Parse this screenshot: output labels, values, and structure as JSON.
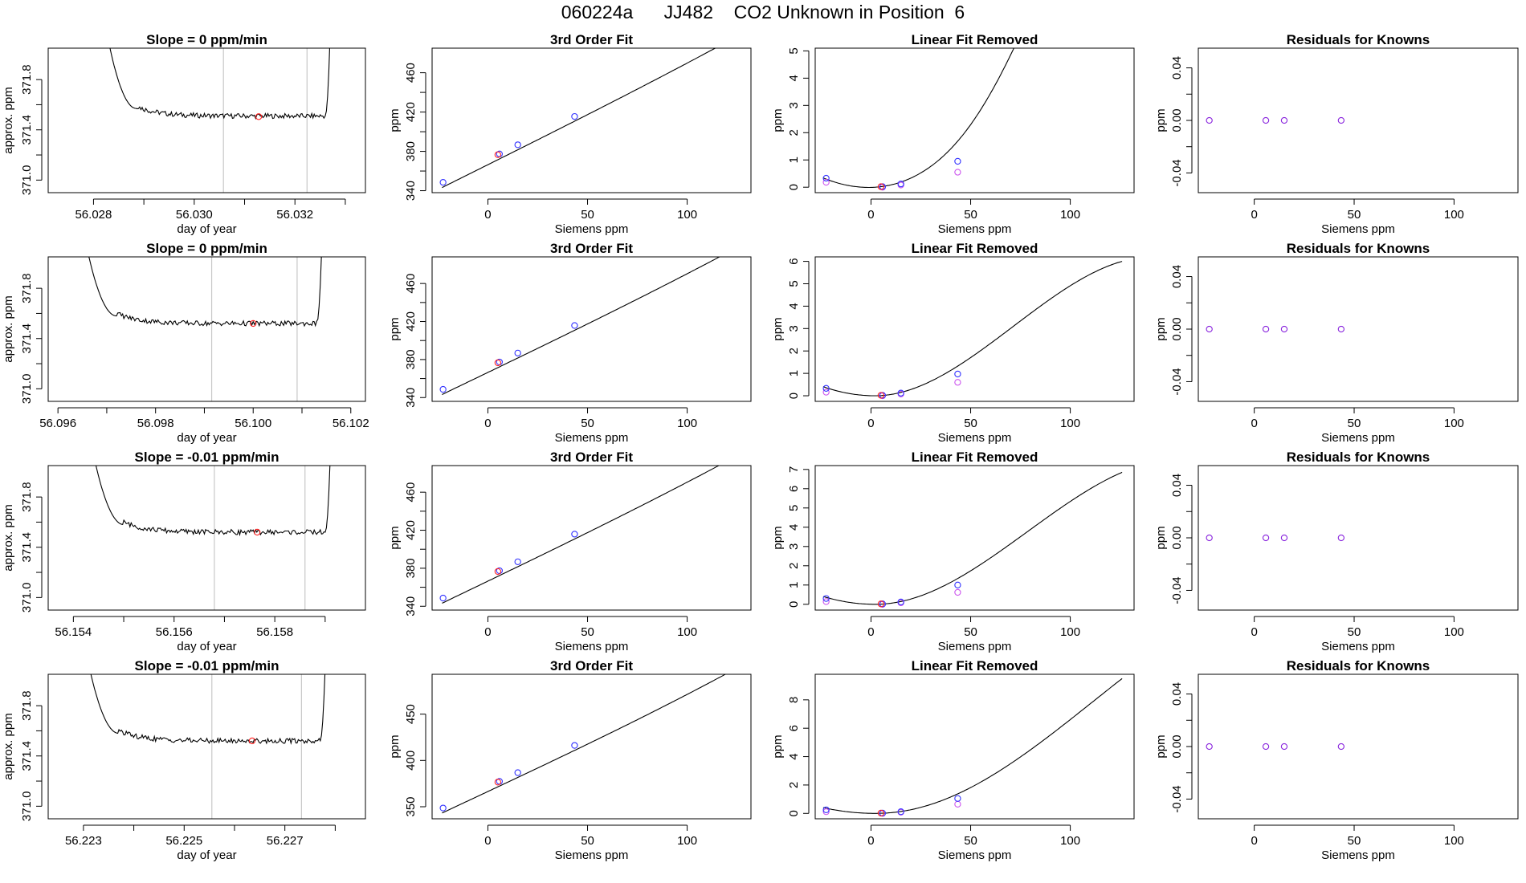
{
  "figure_title": "060224a      JJ482    CO2 Unknown in Position  6",
  "colors": {
    "line": "#000000",
    "known": "#3333ff",
    "unknown": "#ff2222",
    "residual": "#8822dd",
    "removed": "#cc55ee",
    "vline": "#c8c8c8"
  },
  "chart_data": [
    {
      "id": "r1-time",
      "type": "line",
      "title": "Slope =  0  ppm/min",
      "xlabel": "day of year",
      "ylabel": "approx. ppm",
      "xlim": [
        56.0271,
        56.0334
      ],
      "ylim": [
        370.9,
        372.05
      ],
      "xticks": [
        56.028,
        56.029,
        56.03,
        56.031,
        56.032,
        56.033
      ],
      "xtick_labels": [
        "56.028",
        "",
        "56.030",
        "",
        "56.032",
        ""
      ],
      "yticks": [
        371.0,
        371.2,
        371.4,
        371.6,
        371.8
      ],
      "ytick_labels": [
        "371.0",
        "",
        "371.4",
        "",
        "371.8"
      ],
      "start": 56.02885,
      "end": 56.0326,
      "baseline": 371.51,
      "vlines": [
        56.03058,
        56.03224
      ],
      "marker": {
        "x": 56.03128,
        "y": 371.505
      }
    },
    {
      "id": "r1-fit",
      "type": "scatter",
      "title": "3rd Order Fit",
      "xlabel": "Siemens ppm",
      "ylabel": "ppm",
      "xlim": [
        -28,
        132
      ],
      "ylim": [
        338,
        485
      ],
      "xticks": [
        0,
        50,
        100
      ],
      "xtick_labels": [
        "0",
        "50",
        "100"
      ],
      "yticks": [
        340,
        360,
        380,
        400,
        420,
        440,
        460
      ],
      "ytick_labels": [
        "340",
        "",
        "380",
        "",
        "420",
        "",
        "460"
      ],
      "curve": {
        "x0": -23,
        "x1": 126,
        "a": 371.5,
        "b": 1.012,
        "c": 0.0001,
        "d": 1.5e-06
      },
      "known": [
        {
          "x": -22.5,
          "y": 348.5
        },
        {
          "x": 5.8,
          "y": 377.4
        },
        {
          "x": 15.0,
          "y": 386.7
        },
        {
          "x": 43.5,
          "y": 415.5
        }
      ],
      "unknown": [
        {
          "x": 5.0,
          "y": 376.6
        }
      ]
    },
    {
      "id": "r1-lin",
      "type": "scatter",
      "title": "Linear Fit Removed",
      "xlabel": "Siemens ppm",
      "ylabel": "ppm",
      "xlim": [
        -28,
        132
      ],
      "ylim": [
        -0.2,
        5.1
      ],
      "xticks": [
        0,
        50,
        100
      ],
      "xtick_labels": [
        "0",
        "50",
        "100"
      ],
      "yticks": [
        0,
        1,
        2,
        3,
        4,
        5
      ],
      "ytick_labels": [
        "0",
        "1",
        "2",
        "3",
        "4",
        "5"
      ],
      "curve": {
        "x0": -24,
        "x1": 126,
        "type": "sigmoid",
        "k": 0.0012,
        "p": 3.2,
        "s": 5.0
      },
      "known": [
        {
          "x": -22.5,
          "y": 0.33
        },
        {
          "x": 5.8,
          "y": 0.02
        },
        {
          "x": 15.0,
          "y": 0.12
        },
        {
          "x": 43.5,
          "y": 0.95
        }
      ],
      "removed": [
        {
          "x": -22.5,
          "y": 0.18
        },
        {
          "x": 5.8,
          "y": 0.0
        },
        {
          "x": 15.0,
          "y": 0.08
        },
        {
          "x": 43.5,
          "y": 0.55
        }
      ],
      "unknown": [
        {
          "x": 5.0,
          "y": 0.02
        }
      ]
    },
    {
      "id": "r1-res",
      "type": "scatter",
      "title": "Residuals for Knowns",
      "xlabel": "Siemens ppm",
      "ylabel": "ppm",
      "xlim": [
        -28,
        132
      ],
      "ylim": [
        -0.055,
        0.055
      ],
      "xticks": [
        0,
        50,
        100
      ],
      "xtick_labels": [
        "0",
        "50",
        "100"
      ],
      "yticks": [
        -0.04,
        -0.02,
        0,
        0.02,
        0.04
      ],
      "ytick_labels": [
        "-0.04",
        "",
        "0.00",
        "",
        "0.04"
      ],
      "residuals": [
        {
          "x": -22.5,
          "y": 0
        },
        {
          "x": 5.8,
          "y": 0
        },
        {
          "x": 15.0,
          "y": 0
        },
        {
          "x": 43.5,
          "y": 0
        }
      ]
    },
    {
      "id": "r2-time",
      "type": "line",
      "title": "Slope =  0  ppm/min",
      "xlabel": "day of year",
      "ylabel": "approx. ppm",
      "xlim": [
        56.0958,
        56.1023
      ],
      "ylim": [
        370.9,
        372.05
      ],
      "xticks": [
        56.096,
        56.097,
        56.098,
        56.099,
        56.1,
        56.101,
        56.102
      ],
      "xtick_labels": [
        "56.096",
        "",
        "56.098",
        "",
        "56.100",
        "",
        "56.102"
      ],
      "yticks": [
        371.0,
        371.2,
        371.4,
        371.6,
        371.8
      ],
      "ytick_labels": [
        "371.0",
        "",
        "371.4",
        "",
        "371.8"
      ],
      "start": 56.0972,
      "end": 56.1013,
      "baseline": 371.52,
      "vlines": [
        56.09915,
        56.1009
      ],
      "marker": {
        "x": 56.1,
        "y": 371.52
      }
    },
    {
      "id": "r2-fit",
      "type": "scatter",
      "title": "3rd Order Fit",
      "xlabel": "Siemens ppm",
      "ylabel": "ppm",
      "xlim": [
        -28,
        132
      ],
      "ylim": [
        336,
        488
      ],
      "xticks": [
        0,
        50,
        100
      ],
      "xtick_labels": [
        "0",
        "50",
        "100"
      ],
      "yticks": [
        340,
        360,
        380,
        400,
        420,
        440,
        460
      ],
      "ytick_labels": [
        "340",
        "",
        "380",
        "",
        "420",
        "",
        "460"
      ],
      "curve": {
        "x0": -23,
        "x1": 126,
        "a": 371.5,
        "b": 1.012,
        "c": 0.00012,
        "d": 1.8e-06
      },
      "known": [
        {
          "x": -22.5,
          "y": 348.6
        },
        {
          "x": 5.8,
          "y": 377.4
        },
        {
          "x": 15.0,
          "y": 386.8
        },
        {
          "x": 43.5,
          "y": 415.8
        }
      ],
      "unknown": [
        {
          "x": 5.0,
          "y": 376.6
        }
      ]
    },
    {
      "id": "r2-lin",
      "type": "scatter",
      "title": "Linear Fit Removed",
      "xlabel": "Siemens ppm",
      "ylabel": "ppm",
      "xlim": [
        -28,
        132
      ],
      "ylim": [
        -0.25,
        6.2
      ],
      "xticks": [
        0,
        50,
        100
      ],
      "xtick_labels": [
        "0",
        "50",
        "100"
      ],
      "yticks": [
        0,
        1,
        2,
        3,
        4,
        5,
        6
      ],
      "ytick_labels": [
        "0",
        "1",
        "2",
        "3",
        "4",
        "5",
        "6"
      ],
      "curve": {
        "x0": -24,
        "x1": 126,
        "type": "power",
        "k": 0.0012,
        "p": 2.05,
        "s": 6.0
      },
      "known": [
        {
          "x": -22.5,
          "y": 0.33
        },
        {
          "x": 5.8,
          "y": 0.02
        },
        {
          "x": 15.0,
          "y": 0.12
        },
        {
          "x": 43.5,
          "y": 0.97
        }
      ],
      "removed": [
        {
          "x": -22.5,
          "y": 0.16
        },
        {
          "x": 5.8,
          "y": 0.0
        },
        {
          "x": 15.0,
          "y": 0.08
        },
        {
          "x": 43.5,
          "y": 0.6
        }
      ],
      "unknown": [
        {
          "x": 5.0,
          "y": 0.02
        }
      ]
    },
    {
      "id": "r2-res",
      "type": "scatter",
      "title": "Residuals for Knowns",
      "xlabel": "Siemens ppm",
      "ylabel": "ppm",
      "xlim": [
        -28,
        132
      ],
      "ylim": [
        -0.055,
        0.055
      ],
      "xticks": [
        0,
        50,
        100
      ],
      "xtick_labels": [
        "0",
        "50",
        "100"
      ],
      "yticks": [
        -0.04,
        -0.02,
        0,
        0.02,
        0.04
      ],
      "ytick_labels": [
        "-0.04",
        "",
        "0.00",
        "",
        "0.04"
      ],
      "residuals": [
        {
          "x": -22.5,
          "y": 0
        },
        {
          "x": 5.8,
          "y": 0
        },
        {
          "x": 15.0,
          "y": 0
        },
        {
          "x": 43.5,
          "y": 0
        }
      ]
    },
    {
      "id": "r3-time",
      "type": "line",
      "title": "Slope =  -0.01  ppm/min",
      "xlabel": "day of year",
      "ylabel": "approx. ppm",
      "xlim": [
        56.1535,
        56.1598
      ],
      "ylim": [
        370.9,
        372.05
      ],
      "xticks": [
        56.154,
        56.155,
        56.156,
        56.157,
        56.158,
        56.159
      ],
      "xtick_labels": [
        "56.154",
        "",
        "56.156",
        "",
        "56.158",
        ""
      ],
      "yticks": [
        371.0,
        371.2,
        371.4,
        371.6,
        371.8
      ],
      "ytick_labels": [
        "371.0",
        "",
        "371.4",
        "",
        "371.8"
      ],
      "start": 56.155,
      "end": 56.159,
      "baseline": 371.52,
      "vlines": [
        56.1568,
        56.1586
      ],
      "marker": {
        "x": 56.15765,
        "y": 371.52
      }
    },
    {
      "id": "r3-fit",
      "type": "scatter",
      "title": "3rd Order Fit",
      "xlabel": "Siemens ppm",
      "ylabel": "ppm",
      "xlim": [
        -28,
        132
      ],
      "ylim": [
        336,
        488
      ],
      "xticks": [
        0,
        50,
        100
      ],
      "xtick_labels": [
        "0",
        "50",
        "100"
      ],
      "yticks": [
        340,
        360,
        380,
        400,
        420,
        440,
        460
      ],
      "ytick_labels": [
        "340",
        "",
        "380",
        "",
        "420",
        "",
        "460"
      ],
      "curve": {
        "x0": -23,
        "x1": 126,
        "a": 371.5,
        "b": 1.012,
        "c": 0.00013,
        "d": 2e-06
      },
      "known": [
        {
          "x": -22.5,
          "y": 348.6
        },
        {
          "x": 5.8,
          "y": 377.4
        },
        {
          "x": 15.0,
          "y": 386.8
        },
        {
          "x": 43.5,
          "y": 415.9
        }
      ],
      "unknown": [
        {
          "x": 5.0,
          "y": 376.6
        }
      ]
    },
    {
      "id": "r3-lin",
      "type": "scatter",
      "title": "Linear Fit Removed",
      "xlabel": "Siemens ppm",
      "ylabel": "ppm",
      "xlim": [
        -28,
        132
      ],
      "ylim": [
        -0.3,
        7.2
      ],
      "xticks": [
        0,
        50,
        100
      ],
      "xtick_labels": [
        "0",
        "50",
        "100"
      ],
      "yticks": [
        0,
        1,
        2,
        3,
        4,
        5,
        6,
        7
      ],
      "ytick_labels": [
        "0",
        "1",
        "2",
        "3",
        "4",
        "5",
        "6",
        "7"
      ],
      "curve": {
        "x0": -24,
        "x1": 126,
        "type": "power",
        "k": 0.0012,
        "p": 2.15,
        "s": 6.85
      },
      "known": [
        {
          "x": -22.5,
          "y": 0.3
        },
        {
          "x": 5.8,
          "y": 0.02
        },
        {
          "x": 15.0,
          "y": 0.12
        },
        {
          "x": 43.5,
          "y": 1.0
        }
      ],
      "removed": [
        {
          "x": -22.5,
          "y": 0.14
        },
        {
          "x": 5.8,
          "y": 0.0
        },
        {
          "x": 15.0,
          "y": 0.08
        },
        {
          "x": 43.5,
          "y": 0.62
        }
      ],
      "unknown": [
        {
          "x": 5.0,
          "y": 0.02
        }
      ]
    },
    {
      "id": "r3-res",
      "type": "scatter",
      "title": "Residuals for Knowns",
      "xlabel": "Siemens ppm",
      "ylabel": "ppm",
      "xlim": [
        -28,
        132
      ],
      "ylim": [
        -0.055,
        0.055
      ],
      "xticks": [
        0,
        50,
        100
      ],
      "xtick_labels": [
        "0",
        "50",
        "100"
      ],
      "yticks": [
        -0.04,
        -0.02,
        0,
        0.02,
        0.04
      ],
      "ytick_labels": [
        "-0.04",
        "",
        "0.00",
        "",
        "0.04"
      ],
      "residuals": [
        {
          "x": -22.5,
          "y": 0
        },
        {
          "x": 5.8,
          "y": 0
        },
        {
          "x": 15.0,
          "y": 0
        },
        {
          "x": 43.5,
          "y": 0
        }
      ]
    },
    {
      "id": "r4-time",
      "type": "line",
      "title": "Slope =  -0.01  ppm/min",
      "xlabel": "day of year",
      "ylabel": "approx. ppm",
      "xlim": [
        56.2223,
        56.2286
      ],
      "ylim": [
        370.9,
        372.05
      ],
      "xticks": [
        56.223,
        56.224,
        56.225,
        56.226,
        56.227,
        56.228
      ],
      "xtick_labels": [
        "56.223",
        "",
        "56.225",
        "",
        "56.227",
        ""
      ],
      "yticks": [
        371.0,
        371.2,
        371.4,
        371.6,
        371.8
      ],
      "ytick_labels": [
        "371.0",
        "",
        "371.4",
        "",
        "371.8"
      ],
      "start": 56.2237,
      "end": 56.2277,
      "baseline": 371.52,
      "vlines": [
        56.22555,
        56.22733
      ],
      "marker": {
        "x": 56.22635,
        "y": 371.52
      }
    },
    {
      "id": "r4-fit",
      "type": "scatter",
      "title": "3rd Order Fit",
      "xlabel": "Siemens ppm",
      "ylabel": "ppm",
      "xlim": [
        -28,
        132
      ],
      "ylim": [
        337,
        493
      ],
      "xticks": [
        0,
        50,
        100
      ],
      "xtick_labels": [
        "0",
        "50",
        "100"
      ],
      "yticks": [
        350,
        400,
        450
      ],
      "ytick_labels": [
        "350",
        "400",
        "450"
      ],
      "curve": {
        "x0": -23,
        "x1": 126,
        "a": 371.5,
        "b": 1.012,
        "c": 0.00014,
        "d": 2.8e-06
      },
      "known": [
        {
          "x": -22.5,
          "y": 348.6
        },
        {
          "x": 5.8,
          "y": 377.4
        },
        {
          "x": 15.0,
          "y": 386.8
        },
        {
          "x": 43.5,
          "y": 416.2
        }
      ],
      "unknown": [
        {
          "x": 5.0,
          "y": 376.6
        }
      ]
    },
    {
      "id": "r4-lin",
      "type": "scatter",
      "title": "Linear Fit Removed",
      "xlabel": "Siemens ppm",
      "ylabel": "ppm",
      "xlim": [
        -28,
        132
      ],
      "ylim": [
        -0.38,
        9.8
      ],
      "xticks": [
        0,
        50,
        100
      ],
      "xtick_labels": [
        "0",
        "50",
        "100"
      ],
      "yticks": [
        0,
        2,
        4,
        6,
        8
      ],
      "ytick_labels": [
        "0",
        "2",
        "4",
        "6",
        "8"
      ],
      "curve": {
        "x0": -24,
        "x1": 126,
        "type": "power",
        "k": 0.0012,
        "p": 2.4,
        "s": 9.5
      },
      "known": [
        {
          "x": -22.5,
          "y": 0.25
        },
        {
          "x": 5.8,
          "y": 0.02
        },
        {
          "x": 15.0,
          "y": 0.12
        },
        {
          "x": 43.5,
          "y": 1.05
        }
      ],
      "removed": [
        {
          "x": -22.5,
          "y": 0.12
        },
        {
          "x": 5.8,
          "y": 0.0
        },
        {
          "x": 15.0,
          "y": 0.08
        },
        {
          "x": 43.5,
          "y": 0.65
        }
      ],
      "unknown": [
        {
          "x": 5.0,
          "y": 0.02
        }
      ]
    },
    {
      "id": "r4-res",
      "type": "scatter",
      "title": "Residuals for Knowns",
      "xlabel": "Siemens ppm",
      "ylabel": "ppm",
      "xlim": [
        -28,
        132
      ],
      "ylim": [
        -0.055,
        0.055
      ],
      "xticks": [
        0,
        50,
        100
      ],
      "xtick_labels": [
        "0",
        "50",
        "100"
      ],
      "yticks": [
        -0.04,
        -0.02,
        0,
        0.02,
        0.04
      ],
      "ytick_labels": [
        "-0.04",
        "",
        "0.00",
        "",
        "0.04"
      ],
      "residuals": [
        {
          "x": -22.5,
          "y": 0
        },
        {
          "x": 5.8,
          "y": 0
        },
        {
          "x": 15.0,
          "y": 0
        },
        {
          "x": 43.5,
          "y": 0
        }
      ]
    }
  ]
}
